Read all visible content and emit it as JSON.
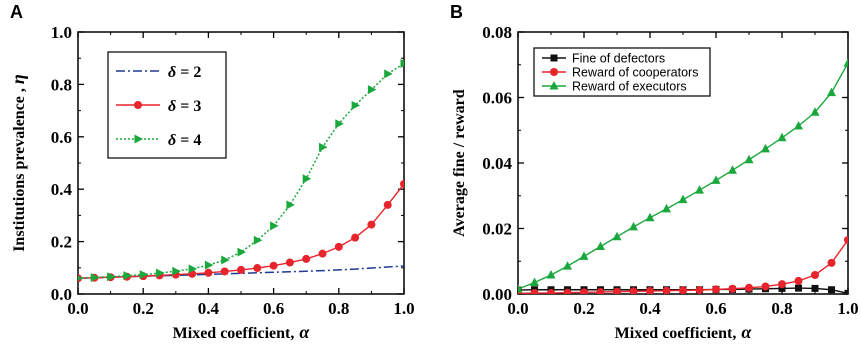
{
  "chart_data": [
    {
      "panel": "A",
      "type": "line",
      "xlabel": "Mixed coefficient,",
      "xlabel_symbol": "α",
      "ylabel": "Institutions prevalence ,",
      "ylabel_symbol": "η",
      "xlim": [
        0,
        1
      ],
      "ylim": [
        0,
        1
      ],
      "xticks": [
        "0.0",
        "0.2",
        "0.4",
        "0.6",
        "0.8",
        "1.0"
      ],
      "yticks": [
        "0.0",
        "0.2",
        "0.4",
        "0.6",
        "0.8",
        "1.0"
      ],
      "legend_position": "upper-left inside",
      "x": [
        0,
        0.05,
        0.1,
        0.15,
        0.2,
        0.25,
        0.3,
        0.35,
        0.4,
        0.45,
        0.5,
        0.55,
        0.6,
        0.65,
        0.7,
        0.75,
        0.8,
        0.85,
        0.9,
        0.95,
        1.0
      ],
      "series": [
        {
          "name": "δ = 2",
          "color": "#1f3a93",
          "style": "dash-dot",
          "marker": "none",
          "values": [
            0.06,
            0.062,
            0.064,
            0.066,
            0.068,
            0.07,
            0.071,
            0.073,
            0.075,
            0.077,
            0.079,
            0.081,
            0.083,
            0.085,
            0.087,
            0.089,
            0.092,
            0.095,
            0.099,
            0.103,
            0.107
          ]
        },
        {
          "name": "δ = 3",
          "color": "#e8242c",
          "style": "solid",
          "marker": "circle",
          "values": [
            0.06,
            0.062,
            0.064,
            0.066,
            0.068,
            0.071,
            0.074,
            0.077,
            0.081,
            0.086,
            0.092,
            0.099,
            0.108,
            0.12,
            0.134,
            0.154,
            0.18,
            0.215,
            0.265,
            0.34,
            0.42
          ]
        },
        {
          "name": "δ = 4",
          "color": "#1aa83c",
          "style": "dotted",
          "marker": "triangle-right",
          "values": [
            0.06,
            0.063,
            0.066,
            0.07,
            0.074,
            0.08,
            0.087,
            0.096,
            0.11,
            0.13,
            0.16,
            0.205,
            0.26,
            0.34,
            0.44,
            0.56,
            0.65,
            0.72,
            0.78,
            0.84,
            0.88
          ]
        }
      ]
    },
    {
      "panel": "B",
      "type": "line",
      "xlabel": "Mixed coefficient,",
      "xlabel_symbol": "α",
      "ylabel": "Average fine / reward",
      "xlim": [
        0,
        1
      ],
      "ylim": [
        0,
        0.08
      ],
      "xticks": [
        "0.0",
        "0.2",
        "0.4",
        "0.6",
        "0.8",
        "1.0"
      ],
      "yticks": [
        "0.00",
        "0.02",
        "0.04",
        "0.06",
        "0.08"
      ],
      "legend_position": "upper-left inside",
      "x": [
        0,
        0.05,
        0.1,
        0.15,
        0.2,
        0.25,
        0.3,
        0.35,
        0.4,
        0.45,
        0.5,
        0.55,
        0.6,
        0.65,
        0.7,
        0.75,
        0.8,
        0.85,
        0.9,
        0.95,
        1.0
      ],
      "series": [
        {
          "name": "Fine of defectors",
          "color": "#111111",
          "style": "solid",
          "marker": "square",
          "values": [
            0.0012,
            0.0013,
            0.0013,
            0.0013,
            0.0013,
            0.0013,
            0.0013,
            0.0013,
            0.0013,
            0.0013,
            0.0013,
            0.0013,
            0.0014,
            0.0014,
            0.0015,
            0.0016,
            0.0017,
            0.0018,
            0.0017,
            0.0013,
            0.0002
          ]
        },
        {
          "name": "Reward of cooperators",
          "color": "#e8242c",
          "style": "solid",
          "marker": "circle",
          "values": [
            0.0002,
            0.0003,
            0.0003,
            0.0004,
            0.0005,
            0.0006,
            0.0007,
            0.0008,
            0.0009,
            0.001,
            0.0011,
            0.0012,
            0.0014,
            0.0016,
            0.0019,
            0.0023,
            0.003,
            0.004,
            0.0058,
            0.0095,
            0.0165
          ]
        },
        {
          "name": "Reward of executors",
          "color": "#1aa83c",
          "style": "solid",
          "marker": "triangle-up",
          "values": [
            0.0015,
            0.0035,
            0.0058,
            0.0085,
            0.0115,
            0.0145,
            0.0175,
            0.0205,
            0.0233,
            0.026,
            0.0288,
            0.0317,
            0.0347,
            0.0378,
            0.041,
            0.0443,
            0.0477,
            0.0513,
            0.0555,
            0.0615,
            0.0705
          ]
        }
      ]
    }
  ]
}
